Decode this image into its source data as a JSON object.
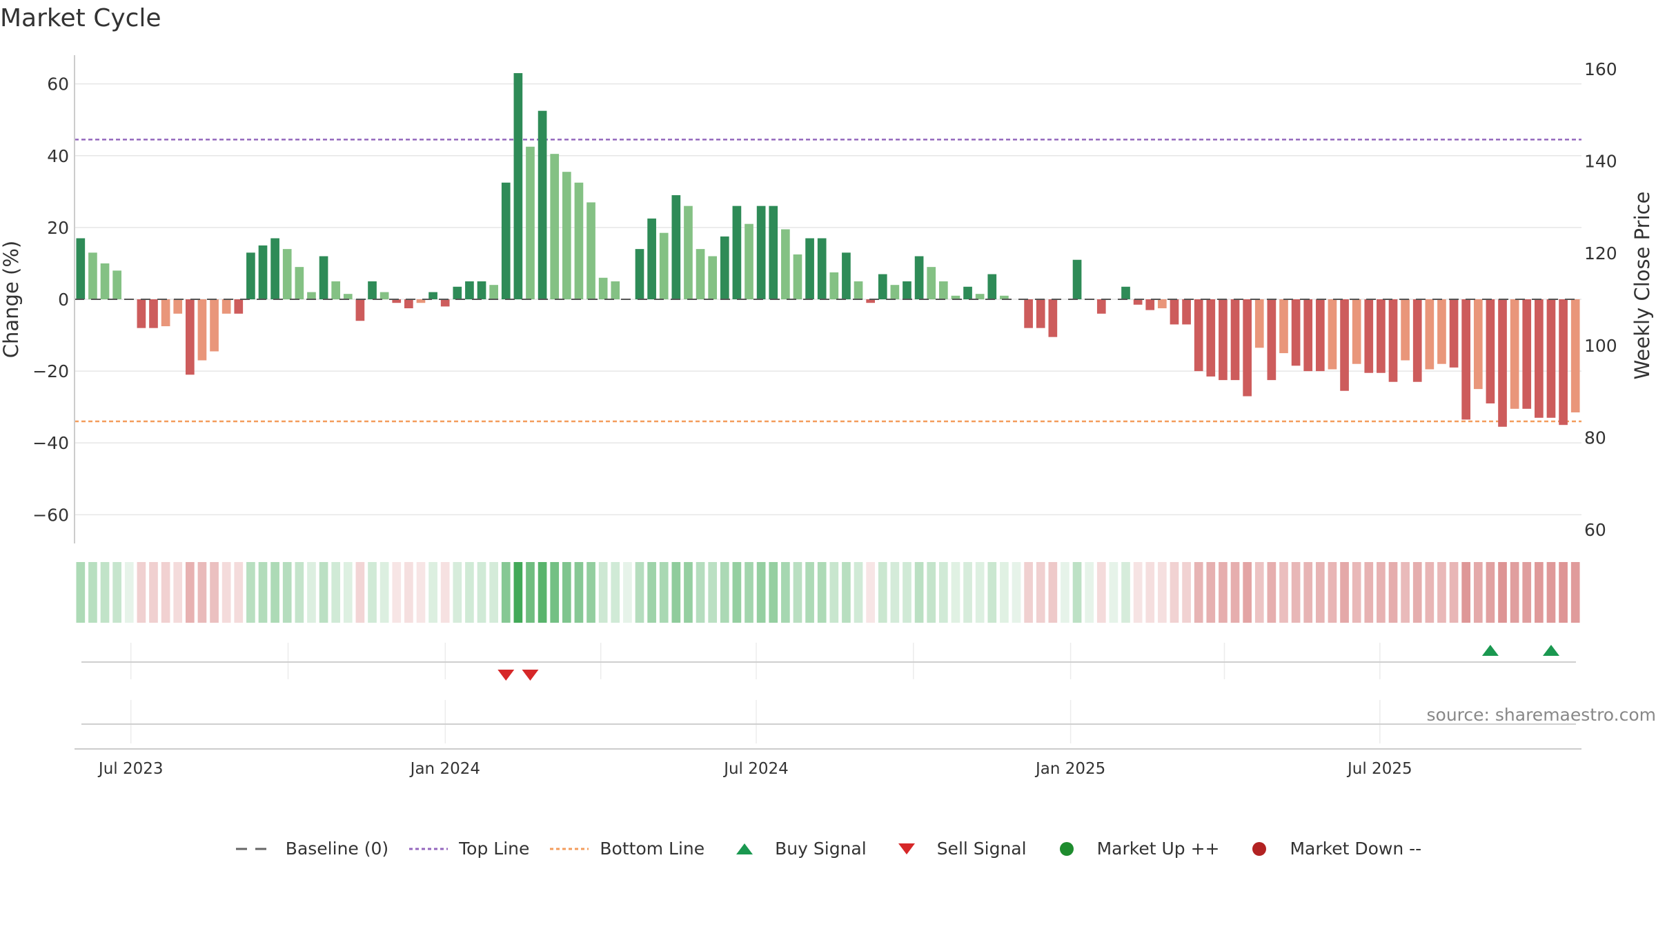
{
  "chart_data": {
    "type": "bar",
    "title": "Market Cycle",
    "source": "source: sharemaestro.com",
    "ylabel_left": "Change (%)",
    "ylabel_right": "Weekly Close Price",
    "ylim_left": [
      -68,
      68
    ],
    "yticks_left": [
      "60",
      "40",
      "20",
      "0",
      "−20",
      "−40",
      "−60"
    ],
    "ylim_right": [
      57,
      163
    ],
    "yticks_right": [
      "160",
      "140",
      "120",
      "100",
      "80",
      "60"
    ],
    "x_start": "2023-05-29",
    "x_end": "2025-10-27",
    "xticks": [
      {
        "date": "2023-07-01",
        "label": "Jul 2023"
      },
      {
        "date": "2024-01-01",
        "label": "Jan 2024"
      },
      {
        "date": "2024-07-01",
        "label": "Jul 2024"
      },
      {
        "date": "2025-01-01",
        "label": "Jan 2025"
      },
      {
        "date": "2025-07-01",
        "label": "Jul 2025"
      }
    ],
    "top_line": 44.5,
    "bottom_line": -34,
    "grid": true,
    "values": [
      17,
      13,
      10,
      8,
      0,
      -8,
      -8,
      -7.5,
      -4,
      -21,
      -17,
      -14.5,
      -4,
      -4,
      13,
      15,
      17,
      14,
      9,
      2,
      12,
      5,
      1.5,
      -6,
      5,
      2,
      -1,
      -2.5,
      -1,
      2,
      -2,
      3.5,
      5,
      5,
      4,
      32.5,
      63,
      42.5,
      52.5,
      40.5,
      35.5,
      32.5,
      27,
      6,
      5,
      0,
      14,
      22.5,
      18.5,
      29,
      26,
      14,
      12,
      17.5,
      26,
      21,
      26,
      26,
      19.5,
      12.5,
      17,
      17,
      7.5,
      13,
      5,
      -1,
      7,
      4,
      5,
      12,
      9,
      5,
      1,
      3.5,
      1.5,
      7,
      1,
      0,
      -8,
      -8,
      -10.5,
      0,
      11,
      0,
      -4,
      0,
      3.5,
      -1.5,
      -3,
      -2.5,
      -7,
      -7,
      -20,
      -21.5,
      -22.5,
      -22.5,
      -27,
      -13.5,
      -22.5,
      -15,
      -18.5,
      -20,
      -20,
      -19.5,
      -25.5,
      -18,
      -20.5,
      -20.5,
      -23,
      -17,
      -23,
      -19.5,
      -18,
      -19,
      -33.5,
      -25,
      -29,
      -35.5,
      -30.5,
      -30.5,
      -33,
      -33,
      -35,
      -31.5
    ],
    "buy_signals": [
      116,
      121
    ],
    "sell_signals": [
      35,
      37
    ],
    "legend": [
      {
        "label": "Baseline (0)",
        "symbol": "dash",
        "color": "#666666"
      },
      {
        "label": "Top Line",
        "symbol": "dotted",
        "color": "#9467bd"
      },
      {
        "label": "Bottom Line",
        "symbol": "dotted",
        "color": "#f39c5c"
      },
      {
        "label": "Buy Signal",
        "symbol": "triangle-up",
        "color": "#1a9850"
      },
      {
        "label": "Sell Signal",
        "symbol": "triangle-down",
        "color": "#d62728"
      },
      {
        "label": "Market Up ++",
        "symbol": "circle",
        "color": "#1e8c2e"
      },
      {
        "label": "Market Down --",
        "symbol": "circle",
        "color": "#b22222"
      }
    ],
    "colors": {
      "strong_up": "#2e8b57",
      "weak_up": "#84c184",
      "strong_down": "#cd5c5c",
      "weak_down": "#e9967a",
      "top_line": "#9467bd",
      "bottom_line": "#f39c5c",
      "grid": "#e6e6e6",
      "axis": "#cccccc"
    }
  }
}
